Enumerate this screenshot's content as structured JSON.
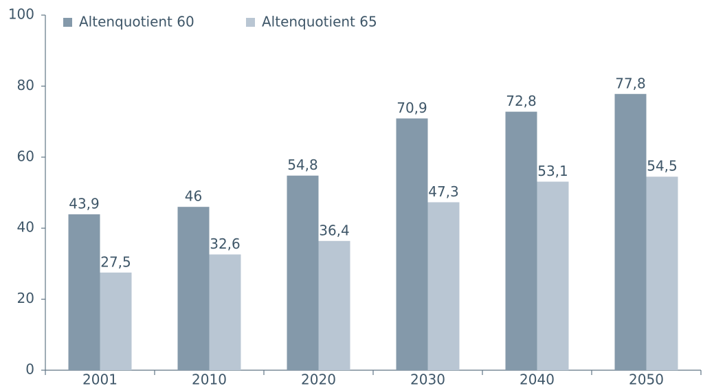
{
  "chart_data": {
    "type": "bar",
    "categories": [
      "2001",
      "2010",
      "2020",
      "2030",
      "2040",
      "2050"
    ],
    "series": [
      {
        "name": "Altenquotient 60",
        "color": "#8499aa",
        "values": [
          43.9,
          46,
          54.8,
          70.9,
          72.8,
          77.8
        ],
        "value_labels": [
          "43,9",
          "46",
          "54,8",
          "70,9",
          "72,8",
          "77,8"
        ]
      },
      {
        "name": "Altenquotient 65",
        "color": "#b9c6d3",
        "values": [
          27.5,
          32.6,
          36.4,
          47.3,
          53.1,
          54.5
        ],
        "value_labels": [
          "27,5",
          "32,6",
          "36,4",
          "47,3",
          "53,1",
          "54,5"
        ]
      }
    ],
    "ylim": [
      0,
      100
    ],
    "yticks": [
      0,
      20,
      40,
      60,
      80,
      100
    ],
    "legend": "top-left"
  }
}
